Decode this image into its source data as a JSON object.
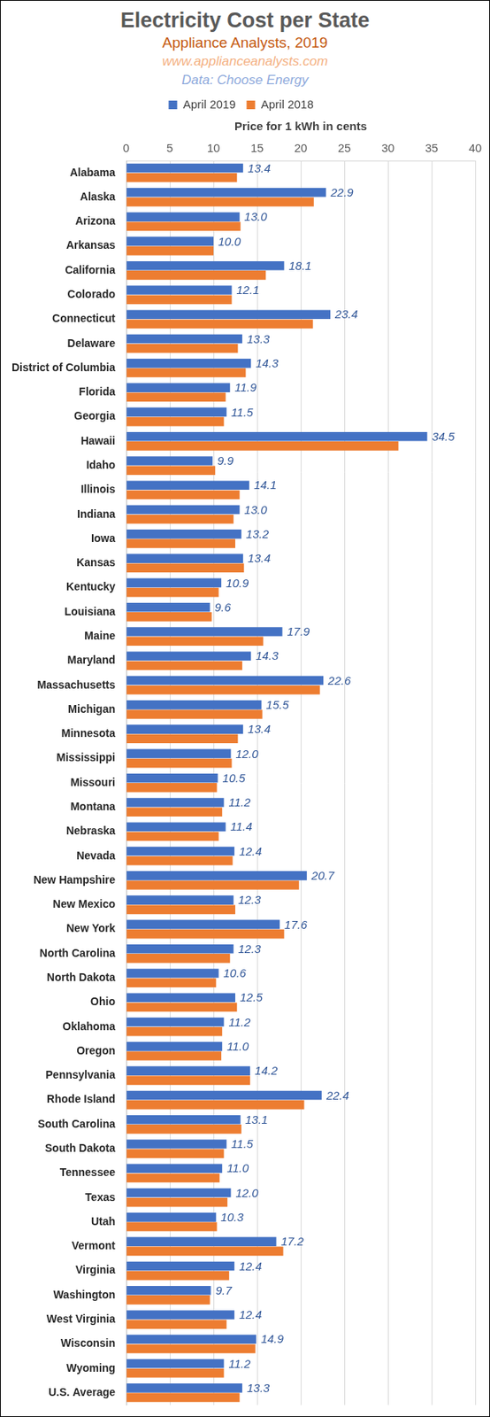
{
  "chart_data": {
    "type": "bar",
    "title": "Electricity Cost per State",
    "subtitle": [
      "Appliance Analysts, 2019",
      "www.applianceanalysts.com",
      "Data: Choose Energy"
    ],
    "x_label": "Price for 1 kWh in cents",
    "orientation": "horizontal",
    "grid": true,
    "legend": "top",
    "xlim": [
      0,
      40
    ],
    "xticks": [
      0,
      5,
      10,
      15,
      20,
      25,
      30,
      35,
      40
    ],
    "categories": [
      "Alabama",
      "Alaska",
      "Arizona",
      "Arkansas",
      "California",
      "Colorado",
      "Connecticut",
      "Delaware",
      "District of Columbia",
      "Florida",
      "Georgia",
      "Hawaii",
      "Idaho",
      "Illinois",
      "Indiana",
      "Iowa",
      "Kansas",
      "Kentucky",
      "Louisiana",
      "Maine",
      "Maryland",
      "Massachusetts",
      "Michigan",
      "Minnesota",
      "Mississippi",
      "Missouri",
      "Montana",
      "Nebraska",
      "Nevada",
      "New Hampshire",
      "New Mexico",
      "New York",
      "North Carolina",
      "North Dakota",
      "Ohio",
      "Oklahoma",
      "Oregon",
      "Pennsylvania",
      "Rhode Island",
      "South Carolina",
      "South Dakota",
      "Tennessee",
      "Texas",
      "Utah",
      "Vermont",
      "Virginia",
      "Washington",
      "West Virginia",
      "Wisconsin",
      "Wyoming",
      "U.S. Average"
    ],
    "series": [
      {
        "name": "April 2019",
        "color": "#4472C4",
        "data_labels": true,
        "values": [
          13.4,
          22.9,
          13.0,
          10.0,
          18.1,
          12.1,
          23.4,
          13.3,
          14.3,
          11.9,
          11.5,
          34.5,
          9.9,
          14.1,
          13.0,
          13.2,
          13.4,
          10.9,
          9.6,
          17.9,
          14.3,
          22.6,
          15.5,
          13.4,
          12.0,
          10.5,
          11.2,
          11.4,
          12.4,
          20.7,
          12.3,
          17.6,
          12.3,
          10.6,
          12.5,
          11.2,
          11.0,
          14.2,
          22.4,
          13.1,
          11.5,
          11.0,
          12.0,
          10.3,
          17.2,
          12.4,
          9.7,
          12.4,
          14.9,
          11.2,
          13.3
        ],
        "value_labels": [
          "13.4",
          "22.9",
          "13.0",
          "10.0",
          "18.1",
          "12.1",
          "23.4",
          "13.3",
          "14.3",
          "11.9",
          "11.5",
          "34.5",
          "9.9",
          "14.1",
          "13.0",
          "13.2",
          "13.4",
          "10.9",
          "9.6",
          "17.9",
          "14.3",
          "22.6",
          "15.5",
          "13.4",
          "12.0",
          "10.5",
          "11.2",
          "11.4",
          "12.4",
          "20.7",
          "12.3",
          "17.6",
          "12.3",
          "10.6",
          "12.5",
          "11.2",
          "11.0",
          "14.2",
          "22.4",
          "13.1",
          "11.5",
          "11.0",
          "12.0",
          "10.3",
          "17.2",
          "12.4",
          "9.7",
          "12.4",
          "14.9",
          "11.2",
          "13.3"
        ]
      },
      {
        "name": "April 2018",
        "color": "#ED7D31",
        "values": [
          12.7,
          21.5,
          13.1,
          10.0,
          16.0,
          12.1,
          21.4,
          12.8,
          13.7,
          11.4,
          11.2,
          31.2,
          10.2,
          13.0,
          12.3,
          12.5,
          13.5,
          10.6,
          9.8,
          15.7,
          13.3,
          22.2,
          15.6,
          12.8,
          12.1,
          10.4,
          11.0,
          10.6,
          12.2,
          19.8,
          12.5,
          18.1,
          11.9,
          10.3,
          12.7,
          11.0,
          10.9,
          14.2,
          20.4,
          13.2,
          11.2,
          10.7,
          11.6,
          10.4,
          18.0,
          11.8,
          9.6,
          11.5,
          14.8,
          11.2,
          13.0
        ]
      }
    ]
  }
}
